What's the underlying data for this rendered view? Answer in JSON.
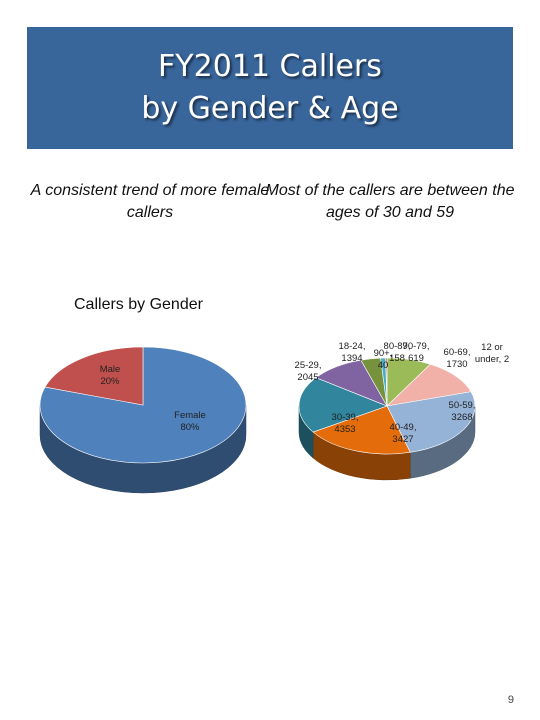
{
  "slide": {
    "title_lines": [
      "FY2011 Callers",
      "by Gender & Age"
    ],
    "left_subtitle": "A consistent trend of more female callers",
    "right_subtitle": "Most of the callers are between the ages of 30 and 59",
    "gender_heading": "Callers by Gender",
    "page_number": "9"
  },
  "chart_data": [
    {
      "type": "pie",
      "title": "Callers by Gender",
      "style": "3d",
      "categories": [
        "Female",
        "Male"
      ],
      "values": [
        80,
        20
      ],
      "unit": "%",
      "slice_labels": [
        "Female\n80%",
        "Male\n20%"
      ],
      "colors": [
        "#4f81bd",
        "#c0504d"
      ]
    },
    {
      "type": "pie",
      "title": "",
      "style": "3d",
      "categories": [
        "12 or under",
        "18-24",
        "25-29",
        "30-39",
        "40-49",
        "50-59",
        "60-69",
        "70-79",
        "80-89",
        "90+"
      ],
      "values": [
        2,
        1394,
        2045,
        4353,
        3427,
        3268,
        1730,
        619,
        158,
        40
      ],
      "colors": [
        "#f79646",
        "#9bbb59",
        "#f2b1a8",
        "#95b3d7",
        "#e46c0a",
        "#31859c",
        "#8064a2",
        "#76923c",
        "#4bacc6",
        "#c0504d"
      ],
      "slice_labels": [
        "12 or\nunder, 2",
        "18-24,\n1394",
        "25-29,\n2045",
        "30-39,\n4353",
        "40-49,\n3427",
        "50-59,\n3268",
        "60-69,\n1730",
        "70-79,\n619",
        "80-89,\n158",
        "90+,\n40"
      ]
    }
  ]
}
